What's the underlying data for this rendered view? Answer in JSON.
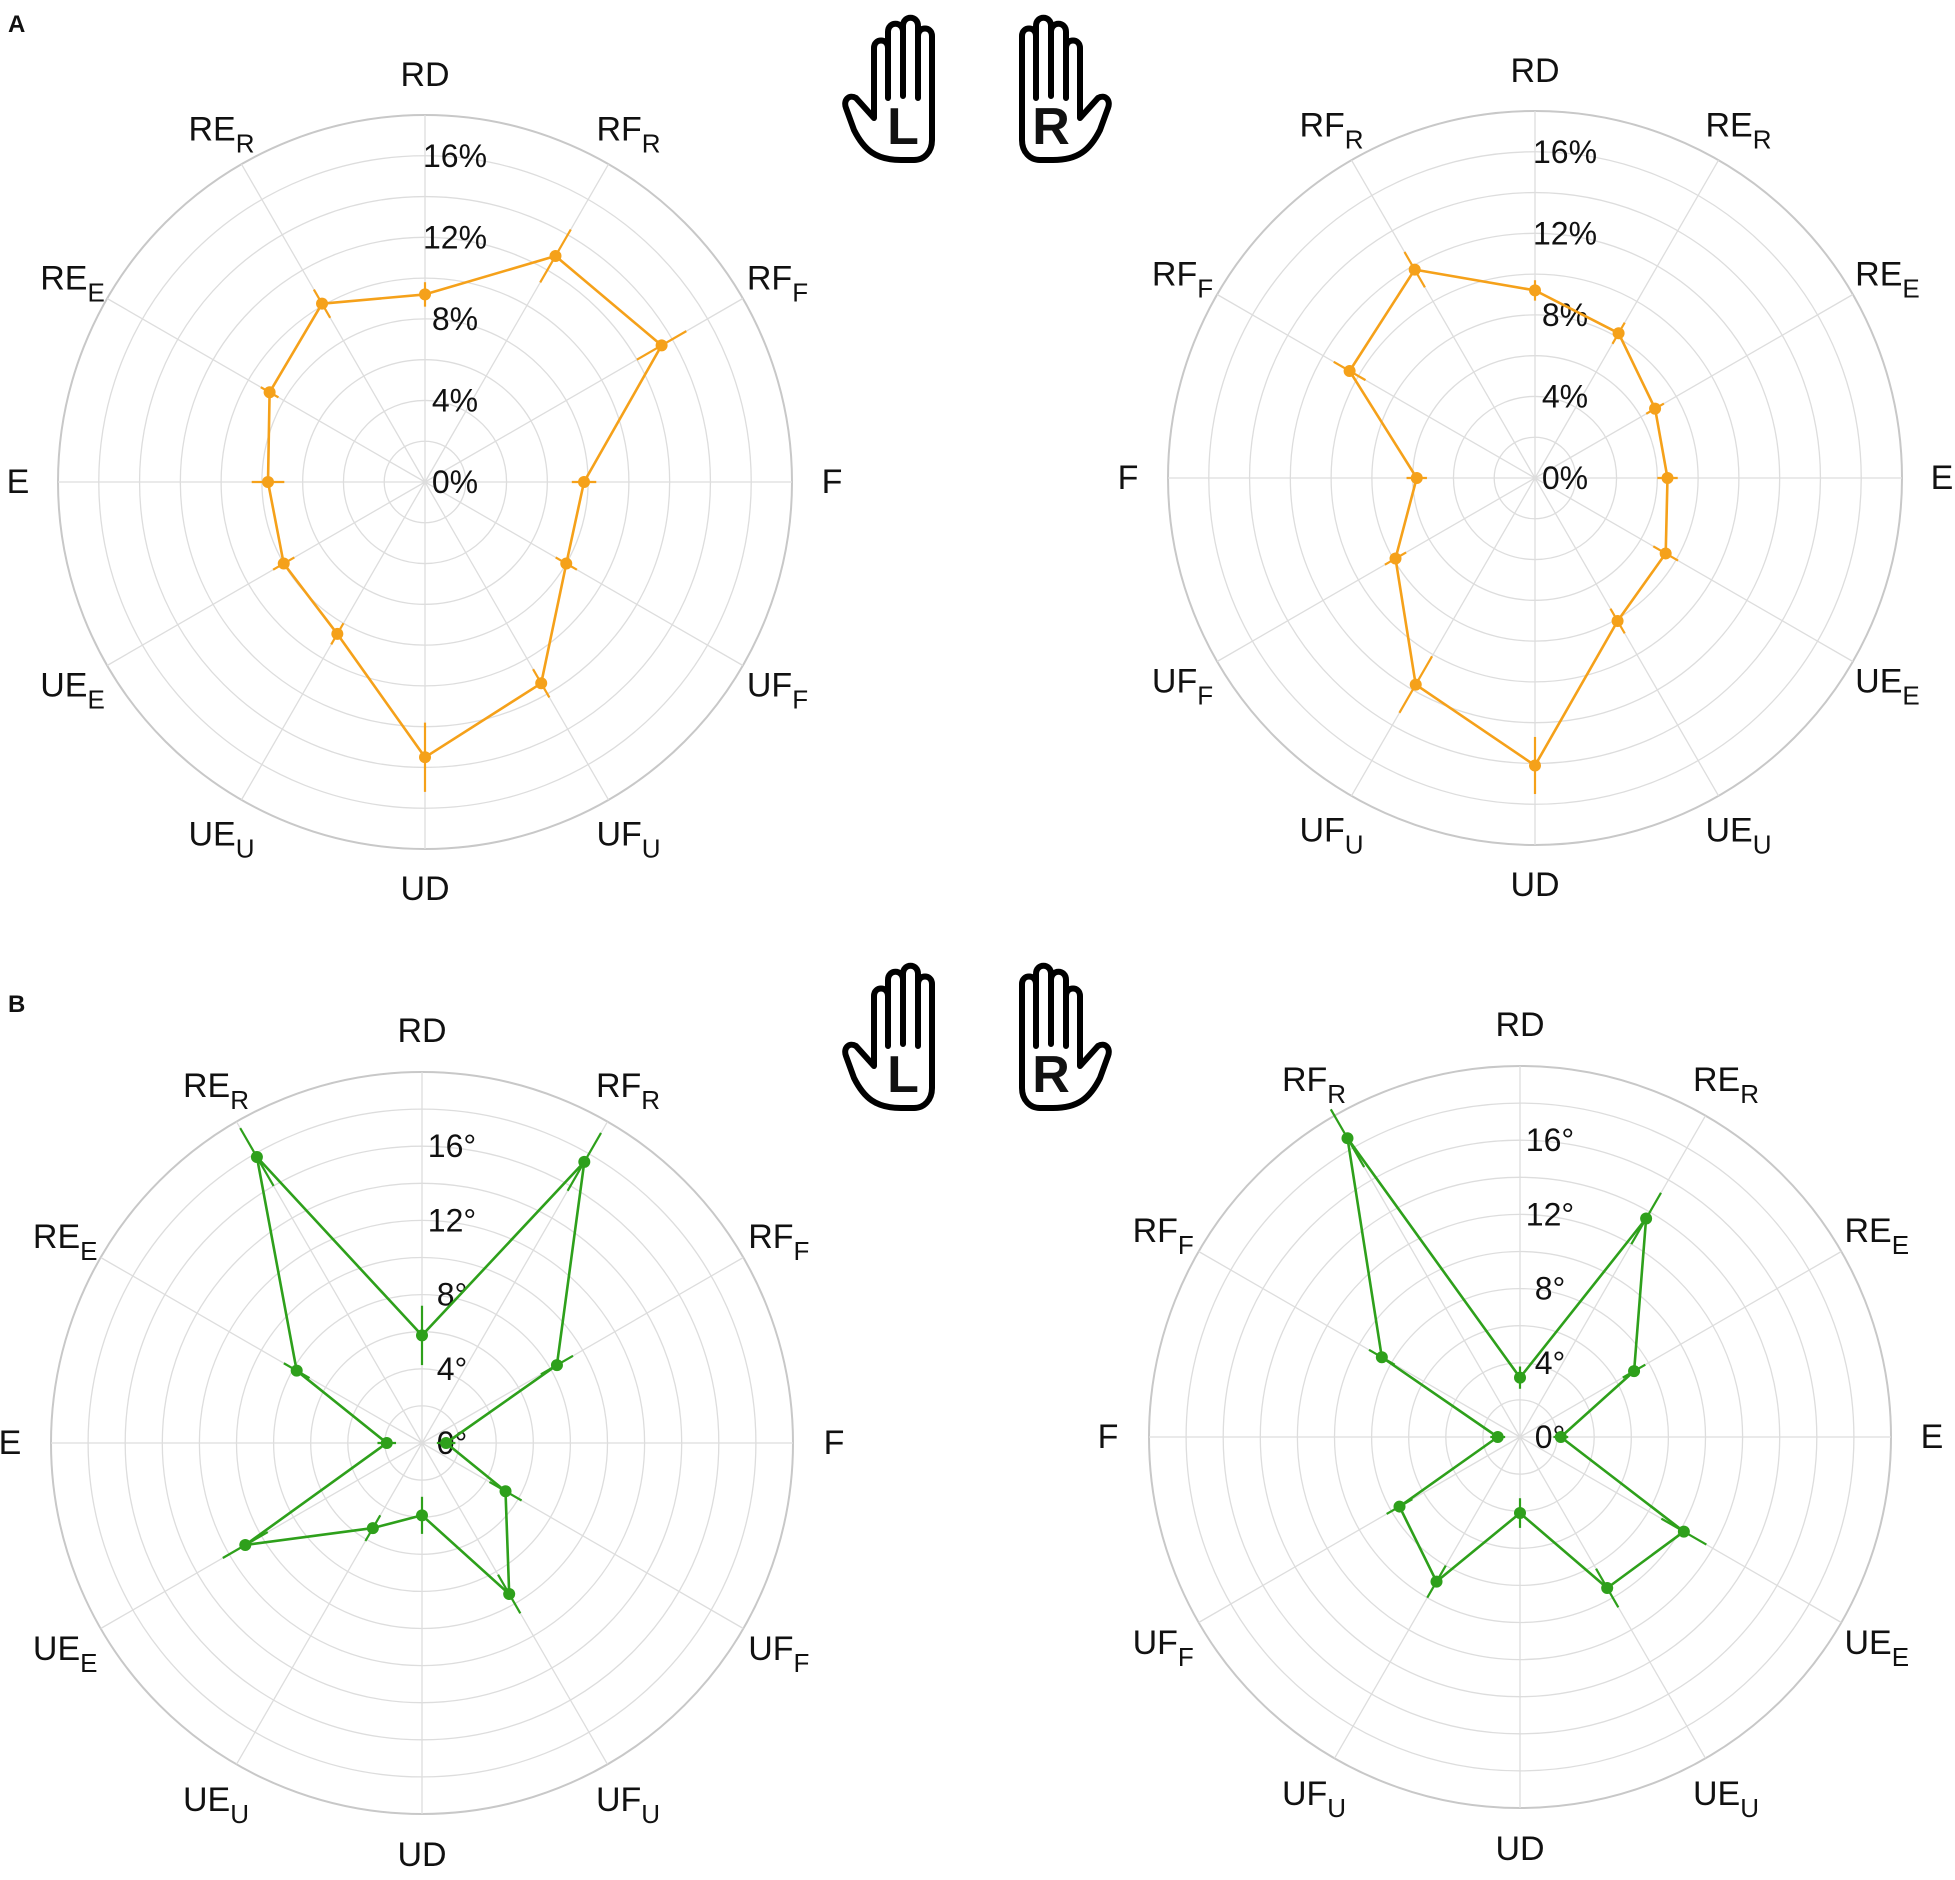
{
  "panels": [
    {
      "letter": "A",
      "unit": "%"
    },
    {
      "letter": "B",
      "unit": "°"
    }
  ],
  "hand_icons": {
    "left_letter": "L",
    "right_letter": "R"
  },
  "colors": {
    "panel_A": "#F5A11A",
    "panel_B": "#2EA01B",
    "grid": "#DDDDDD",
    "outer_ring": "#C8C8C8"
  },
  "chart_data": [
    {
      "type": "radar",
      "panel": "A",
      "hand": "L",
      "rlim": [
        0,
        18
      ],
      "ring_ticks": [
        "0%",
        "4%",
        "8%",
        "12%",
        "16%"
      ],
      "axes": [
        {
          "main": "RD",
          "sub": ""
        },
        {
          "main": "RF",
          "sub": "R"
        },
        {
          "main": "RF",
          "sub": "F"
        },
        {
          "main": "F",
          "sub": ""
        },
        {
          "main": "UF",
          "sub": "F"
        },
        {
          "main": "UF",
          "sub": "U"
        },
        {
          "main": "UD",
          "sub": ""
        },
        {
          "main": "UE",
          "sub": "U"
        },
        {
          "main": "UE",
          "sub": "E"
        },
        {
          "main": "E",
          "sub": ""
        },
        {
          "main": "RE",
          "sub": "E"
        },
        {
          "main": "RE",
          "sub": "R"
        }
      ],
      "values": [
        9.2,
        12.8,
        13.4,
        7.8,
        8.0,
        11.4,
        13.5,
        8.6,
        8.0,
        7.7,
        8.8,
        10.1
      ],
      "errors": [
        0.6,
        1.5,
        1.4,
        0.6,
        0.6,
        0.8,
        1.7,
        0.6,
        0.6,
        0.8,
        0.5,
        0.8
      ],
      "grid": true
    },
    {
      "type": "radar",
      "panel": "A",
      "hand": "R",
      "rlim": [
        0,
        18
      ],
      "ring_ticks": [
        "0%",
        "4%",
        "8%",
        "12%",
        "16%"
      ],
      "axes": [
        {
          "main": "RD",
          "sub": ""
        },
        {
          "main": "RE",
          "sub": "R"
        },
        {
          "main": "RE",
          "sub": "E"
        },
        {
          "main": "E",
          "sub": ""
        },
        {
          "main": "UE",
          "sub": "E"
        },
        {
          "main": "UE",
          "sub": "U"
        },
        {
          "main": "UD",
          "sub": ""
        },
        {
          "main": "UF",
          "sub": "U"
        },
        {
          "main": "UF",
          "sub": "F"
        },
        {
          "main": "F",
          "sub": ""
        },
        {
          "main": "RF",
          "sub": "F"
        },
        {
          "main": "RF",
          "sub": "R"
        }
      ],
      "values": [
        9.2,
        8.2,
        6.8,
        6.5,
        7.4,
        8.1,
        14.1,
        11.7,
        7.9,
        5.8,
        10.5,
        11.8
      ],
      "errors": [
        0.5,
        0.6,
        0.5,
        0.5,
        0.7,
        0.7,
        1.4,
        1.6,
        0.6,
        0.5,
        0.9,
        1.0
      ],
      "grid": true
    },
    {
      "type": "radar",
      "panel": "B",
      "hand": "L",
      "rlim": [
        0,
        20
      ],
      "ring_ticks": [
        "0°",
        "4°",
        "8°",
        "12°",
        "16°"
      ],
      "axes": [
        {
          "main": "RD",
          "sub": ""
        },
        {
          "main": "RF",
          "sub": "R"
        },
        {
          "main": "RF",
          "sub": "F"
        },
        {
          "main": "F",
          "sub": ""
        },
        {
          "main": "UF",
          "sub": "F"
        },
        {
          "main": "UF",
          "sub": "U"
        },
        {
          "main": "UD",
          "sub": ""
        },
        {
          "main": "UE",
          "sub": "U"
        },
        {
          "main": "UE",
          "sub": "E"
        },
        {
          "main": "E",
          "sub": ""
        },
        {
          "main": "RE",
          "sub": "E"
        },
        {
          "main": "RE",
          "sub": "R"
        }
      ],
      "values": [
        5.8,
        17.5,
        8.4,
        1.3,
        5.2,
        9.4,
        3.9,
        5.3,
        11.0,
        1.9,
        7.8,
        17.8
      ],
      "errors": [
        1.6,
        1.8,
        1.0,
        0.5,
        1.0,
        1.2,
        1.0,
        0.8,
        1.4,
        0.5,
        0.8,
        1.8
      ],
      "grid": true
    },
    {
      "type": "radar",
      "panel": "B",
      "hand": "R",
      "rlim": [
        0,
        20
      ],
      "ring_ticks": [
        "0°",
        "4°",
        "8°",
        "12°",
        "16°"
      ],
      "axes": [
        {
          "main": "RD",
          "sub": ""
        },
        {
          "main": "RE",
          "sub": "R"
        },
        {
          "main": "RE",
          "sub": "E"
        },
        {
          "main": "E",
          "sub": ""
        },
        {
          "main": "UE",
          "sub": "E"
        },
        {
          "main": "UE",
          "sub": "U"
        },
        {
          "main": "UD",
          "sub": ""
        },
        {
          "main": "UF",
          "sub": "U"
        },
        {
          "main": "UF",
          "sub": "F"
        },
        {
          "main": "F",
          "sub": ""
        },
        {
          "main": "RF",
          "sub": "F"
        },
        {
          "main": "RF",
          "sub": "R"
        }
      ],
      "values": [
        3.2,
        13.6,
        7.1,
        2.2,
        10.2,
        9.4,
        4.1,
        9.0,
        7.5,
        1.2,
        8.6,
        18.6
      ],
      "errors": [
        0.6,
        1.6,
        0.7,
        0.4,
        1.4,
        1.2,
        0.8,
        1.0,
        0.8,
        0.4,
        0.8,
        1.8
      ],
      "grid": true
    }
  ]
}
